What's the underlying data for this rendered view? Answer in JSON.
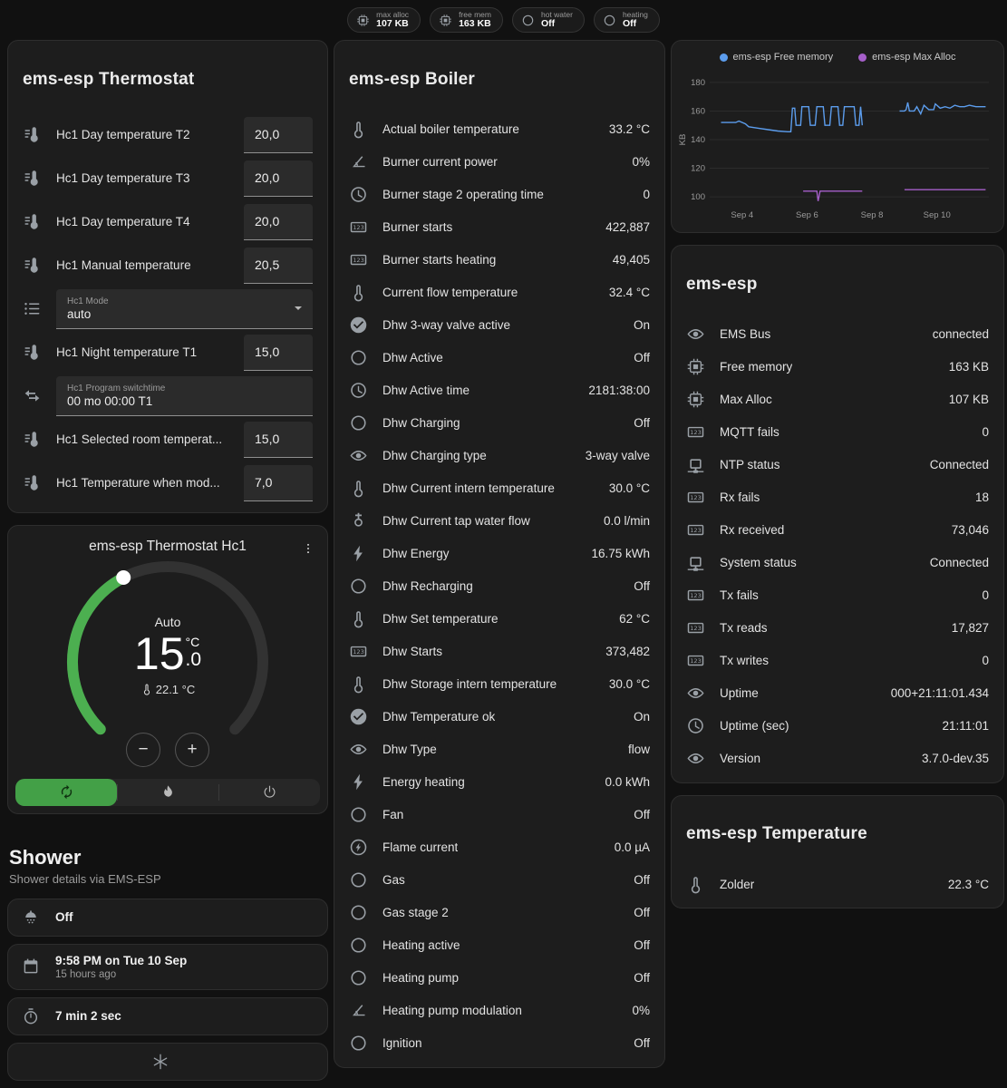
{
  "theme": {
    "green": "#43a047",
    "dial-green": "#4caf50",
    "track": "#323232",
    "teal": "#2fb9a5",
    "amber": "#d8b60a",
    "blue": "#4a86d8",
    "skyblue": "#5c9ded",
    "purple": "#a55fc9",
    "slate": "#7e8c9a",
    "grey": "#9aa0a6"
  },
  "topbar": {
    "chips": [
      {
        "icon": "chip",
        "color": "blue",
        "label": "max alloc",
        "value": "107 KB"
      },
      {
        "icon": "chip",
        "color": "blue",
        "label": "free mem",
        "value": "163 KB"
      },
      {
        "icon": "circle",
        "color": "grey",
        "label": "hot water",
        "value": "Off"
      },
      {
        "icon": "circle",
        "color": "grey",
        "label": "heating",
        "value": "Off"
      }
    ]
  },
  "thermostat_card": {
    "title": "ems-esp Thermostat",
    "rows": [
      {
        "type": "number",
        "icon": "thermo-lines",
        "color": "slate",
        "name": "Hc1 Day temperature T2",
        "value": "20,0"
      },
      {
        "type": "number",
        "icon": "thermo-lines",
        "color": "slate",
        "name": "Hc1 Day temperature T3",
        "value": "20,0"
      },
      {
        "type": "number",
        "icon": "thermo-lines",
        "color": "slate",
        "name": "Hc1 Day temperature T4",
        "value": "20,0"
      },
      {
        "type": "number",
        "icon": "thermo-lines",
        "color": "slate",
        "name": "Hc1 Manual temperature",
        "value": "20,5"
      },
      {
        "type": "select",
        "icon": "list",
        "color": "slate",
        "box_label": "Hc1 Mode",
        "value": "auto"
      },
      {
        "type": "number",
        "icon": "thermo-lines",
        "color": "slate",
        "name": "Hc1 Night temperature T1",
        "value": "15,0"
      },
      {
        "type": "text",
        "icon": "swap",
        "color": "slate",
        "box_label": "Hc1 Program switchtime",
        "value": "00 mo 00:00 T1"
      },
      {
        "type": "number",
        "icon": "thermo-lines",
        "color": "slate",
        "name": "Hc1 Selected room temperat...",
        "value": "15,0"
      },
      {
        "type": "number",
        "icon": "thermo-lines",
        "color": "slate",
        "name": "Hc1 Temperature when mod...",
        "value": "7,0"
      }
    ]
  },
  "hc1_card": {
    "title": "ems-esp Thermostat Hc1",
    "mode_label": "Auto",
    "temp_int": "15",
    "temp_unit": "°C",
    "temp_dec": ".0",
    "current_temp": "22.1 °C",
    "decrease": "−",
    "increase": "+"
  },
  "shower_section": {
    "title": "Shower",
    "subtitle": "Shower details via EMS-ESP",
    "tiles": [
      {
        "icon": "shower",
        "color": "grey",
        "title": "Off"
      },
      {
        "icon": "calendar",
        "color": "amber",
        "title": "9:58 PM on Tue 10 Sep",
        "subtitle": "15 hours ago"
      },
      {
        "icon": "timer",
        "color": "amber",
        "title": "7 min 2 sec"
      },
      {
        "icon": "snowflake",
        "color": "slate",
        "title": "",
        "align": "center"
      }
    ]
  },
  "boiler_card": {
    "title": "ems-esp Boiler",
    "rows": [
      {
        "icon": "thermo",
        "color": "grey",
        "name": "Actual boiler temperature",
        "value": "33.2 °C"
      },
      {
        "icon": "angle",
        "color": "grey",
        "name": "Burner current power",
        "value": "0%"
      },
      {
        "icon": "clock",
        "color": "grey",
        "name": "Burner stage 2 operating time",
        "value": "0"
      },
      {
        "icon": "counter",
        "color": "grey",
        "name": "Burner starts",
        "value": "422,887"
      },
      {
        "icon": "counter",
        "color": "grey",
        "name": "Burner starts heating",
        "value": "49,405"
      },
      {
        "icon": "thermo",
        "color": "grey",
        "name": "Current flow temperature",
        "value": "32.4 °C"
      },
      {
        "icon": "check-circle",
        "color": "teal",
        "name": "Dhw 3-way valve active",
        "value": "On"
      },
      {
        "icon": "circle",
        "color": "grey",
        "name": "Dhw Active",
        "value": "Off"
      },
      {
        "icon": "clock",
        "color": "grey",
        "name": "Dhw Active time",
        "value": "2181:38:00"
      },
      {
        "icon": "circle",
        "color": "grey",
        "name": "Dhw Charging",
        "value": "Off"
      },
      {
        "icon": "eye",
        "color": "slate",
        "name": "Dhw Charging type",
        "value": "3-way valve"
      },
      {
        "icon": "thermo",
        "color": "grey",
        "name": "Dhw Current intern temperature",
        "value": "30.0 °C"
      },
      {
        "icon": "faucet",
        "color": "slate",
        "name": "Dhw Current tap water flow",
        "value": "0.0 l/min"
      },
      {
        "icon": "flash",
        "color": "grey",
        "name": "Dhw Energy",
        "value": "16.75 kWh"
      },
      {
        "icon": "circle",
        "color": "grey",
        "name": "Dhw Recharging",
        "value": "Off"
      },
      {
        "icon": "thermo",
        "color": "grey",
        "name": "Dhw Set temperature",
        "value": "62 °C"
      },
      {
        "icon": "counter",
        "color": "grey",
        "name": "Dhw Starts",
        "value": "373,482"
      },
      {
        "icon": "thermo",
        "color": "grey",
        "name": "Dhw Storage intern temperature",
        "value": "30.0 °C"
      },
      {
        "icon": "check-circle",
        "color": "teal",
        "name": "Dhw Temperature ok",
        "value": "On"
      },
      {
        "icon": "eye",
        "color": "slate",
        "name": "Dhw Type",
        "value": "flow"
      },
      {
        "icon": "flash",
        "color": "grey",
        "name": "Energy heating",
        "value": "0.0 kWh"
      },
      {
        "icon": "circle",
        "color": "grey",
        "name": "Fan",
        "value": "Off"
      },
      {
        "icon": "flash-circle",
        "color": "grey",
        "name": "Flame current",
        "value": "0.0 µA"
      },
      {
        "icon": "circle",
        "color": "grey",
        "name": "Gas",
        "value": "Off"
      },
      {
        "icon": "circle",
        "color": "grey",
        "name": "Gas stage 2",
        "value": "Off"
      },
      {
        "icon": "circle",
        "color": "grey",
        "name": "Heating active",
        "value": "Off"
      },
      {
        "icon": "circle",
        "color": "grey",
        "name": "Heating pump",
        "value": "Off"
      },
      {
        "icon": "angle",
        "color": "grey",
        "name": "Heating pump modulation",
        "value": "0%"
      },
      {
        "icon": "circle",
        "color": "grey",
        "name": "Ignition",
        "value": "Off"
      }
    ]
  },
  "chart_card": {
    "chart_data": {
      "type": "line",
      "title": "",
      "xlabel": "",
      "ylabel": "KB",
      "ylim": [
        95,
        185
      ],
      "yticks": [
        100,
        120,
        140,
        160,
        180
      ],
      "x_range": [
        0,
        8.6
      ],
      "xticks": [
        {
          "pos": 1,
          "label": "Sep 4"
        },
        {
          "pos": 3,
          "label": "Sep 6"
        },
        {
          "pos": 5,
          "label": "Sep 8"
        },
        {
          "pos": 7,
          "label": "Sep 10"
        }
      ],
      "grid": "horizontal",
      "legend_position": "top",
      "series": [
        {
          "name": "ems-esp Free memory",
          "color": "#5c9ded",
          "segments": [
            [
              [
                0.35,
                152
              ],
              [
                0.8,
                152
              ],
              [
                0.9,
                153
              ],
              [
                1.1,
                151
              ],
              [
                1.2,
                149
              ],
              [
                1.5,
                148
              ],
              [
                1.8,
                147
              ],
              [
                2.1,
                146
              ],
              [
                2.4,
                145.5
              ],
              [
                2.5,
                145.5
              ],
              [
                2.55,
                162
              ],
              [
                2.62,
                162
              ],
              [
                2.66,
                150
              ],
              [
                2.8,
                150
              ],
              [
                2.84,
                163
              ],
              [
                3.05,
                163
              ],
              [
                3.1,
                150
              ],
              [
                3.25,
                150
              ],
              [
                3.3,
                163
              ],
              [
                3.5,
                163
              ],
              [
                3.55,
                150
              ],
              [
                3.7,
                150
              ],
              [
                3.75,
                163
              ],
              [
                3.95,
                163
              ],
              [
                4.0,
                150
              ],
              [
                4.1,
                150
              ],
              [
                4.15,
                163
              ],
              [
                4.45,
                163
              ],
              [
                4.5,
                150
              ],
              [
                4.6,
                150
              ],
              [
                4.65,
                163
              ],
              [
                4.7,
                150
              ]
            ],
            [
              [
                5.85,
                160
              ],
              [
                6.0,
                160
              ],
              [
                6.05,
                161
              ],
              [
                6.1,
                166
              ],
              [
                6.15,
                160
              ],
              [
                6.3,
                160
              ],
              [
                6.38,
                163
              ],
              [
                6.5,
                158
              ],
              [
                6.6,
                164
              ],
              [
                6.75,
                161
              ],
              [
                6.9,
                161
              ],
              [
                6.95,
                165
              ],
              [
                7.1,
                162
              ],
              [
                7.25,
                163
              ],
              [
                7.4,
                162
              ],
              [
                7.55,
                164
              ],
              [
                7.7,
                163
              ],
              [
                7.85,
                163
              ],
              [
                8.0,
                164
              ],
              [
                8.2,
                163
              ],
              [
                8.5,
                163
              ]
            ]
          ]
        },
        {
          "name": "ems-esp Max Alloc",
          "color": "#a55fc9",
          "segments": [
            [
              [
                2.88,
                104
              ],
              [
                3.3,
                104
              ],
              [
                3.34,
                97
              ],
              [
                3.4,
                104
              ],
              [
                4.7,
                104
              ]
            ],
            [
              [
                6.0,
                105
              ],
              [
                8.5,
                105
              ]
            ]
          ]
        }
      ]
    }
  },
  "emsesp_card": {
    "title": "ems-esp",
    "rows": [
      {
        "icon": "eye",
        "color": "slate",
        "name": "EMS Bus",
        "value": "connected"
      },
      {
        "icon": "chip",
        "color": "slate",
        "name": "Free memory",
        "value": "163 KB"
      },
      {
        "icon": "chip",
        "color": "slate",
        "name": "Max Alloc",
        "value": "107 KB"
      },
      {
        "icon": "counter",
        "color": "grey",
        "name": "MQTT fails",
        "value": "0"
      },
      {
        "icon": "network",
        "color": "slate",
        "name": "NTP status",
        "value": "Connected"
      },
      {
        "icon": "counter",
        "color": "grey",
        "name": "Rx fails",
        "value": "18"
      },
      {
        "icon": "counter",
        "color": "grey",
        "name": "Rx received",
        "value": "73,046"
      },
      {
        "icon": "network",
        "color": "slate",
        "name": "System status",
        "value": "Connected"
      },
      {
        "icon": "counter",
        "color": "grey",
        "name": "Tx fails",
        "value": "0"
      },
      {
        "icon": "counter",
        "color": "grey",
        "name": "Tx reads",
        "value": "17,827"
      },
      {
        "icon": "counter",
        "color": "grey",
        "name": "Tx writes",
        "value": "0"
      },
      {
        "icon": "eye",
        "color": "slate",
        "name": "Uptime",
        "value": "000+21:11:01.434"
      },
      {
        "icon": "clock",
        "color": "grey",
        "name": "Uptime (sec)",
        "value": "21:11:01"
      },
      {
        "icon": "eye",
        "color": "slate",
        "name": "Version",
        "value": "3.7.0-dev.35"
      }
    ]
  },
  "temperature_card": {
    "title": "ems-esp Temperature",
    "rows": [
      {
        "icon": "thermo",
        "color": "grey",
        "name": "Zolder",
        "value": "22.3 °C"
      }
    ]
  }
}
